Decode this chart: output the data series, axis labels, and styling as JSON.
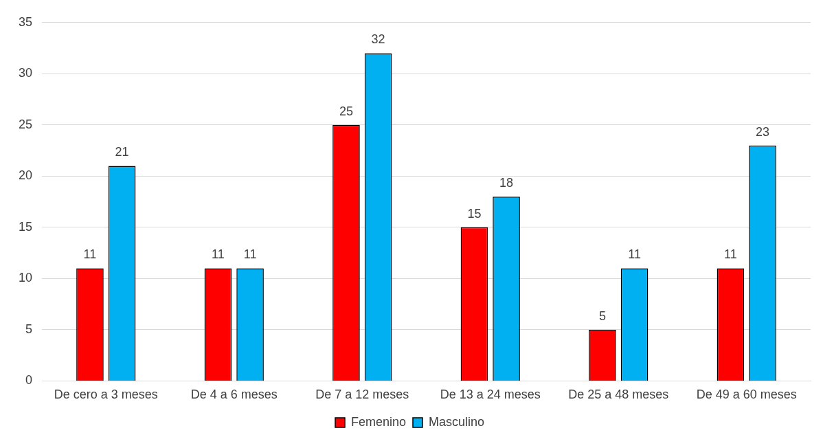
{
  "chart_data": {
    "type": "bar",
    "categories": [
      "De cero a 3 meses",
      "De 4 a 6 meses",
      "De 7 a 12 meses",
      "De 13 a 24 meses",
      "De 25 a 48 meses",
      "De 49 a 60 meses"
    ],
    "series": [
      {
        "name": "Femenino",
        "color": "#ff0000",
        "values": [
          11,
          11,
          25,
          15,
          5,
          11
        ]
      },
      {
        "name": "Masculino",
        "color": "#00b0f0",
        "values": [
          21,
          11,
          32,
          18,
          11,
          23
        ]
      }
    ],
    "ylim": [
      0,
      35
    ],
    "yticks": [
      0,
      5,
      10,
      15,
      20,
      25,
      30,
      35
    ],
    "grid": "y",
    "legend": "bottom",
    "data_labels": true
  }
}
